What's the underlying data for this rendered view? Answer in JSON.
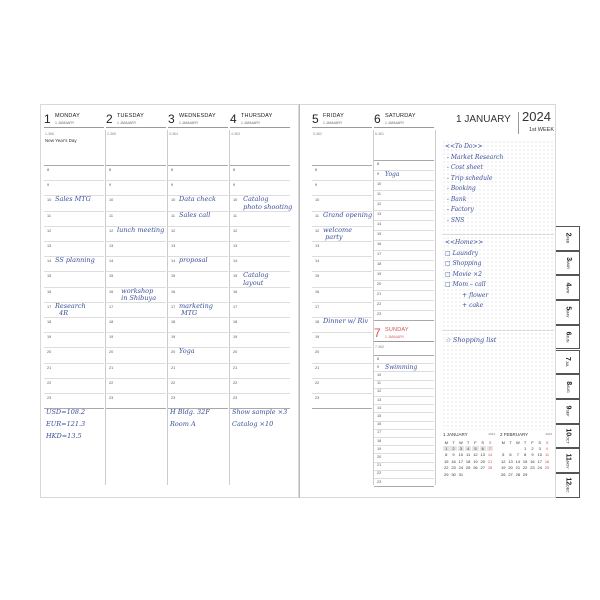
{
  "days": [
    {
      "num": "1",
      "name": "MONDAY",
      "month": "1 JANUARY",
      "count": "1-366",
      "holiday": "New Year's Day"
    },
    {
      "num": "2",
      "name": "TUESDAY",
      "month": "1 JANUARY",
      "count": "2-365",
      "holiday": ""
    },
    {
      "num": "3",
      "name": "WEDNESDAY",
      "month": "1 JANUARY",
      "count": "3-364",
      "holiday": ""
    },
    {
      "num": "4",
      "name": "THURSDAY",
      "month": "1 JANUARY",
      "count": "4-363",
      "holiday": ""
    },
    {
      "num": "5",
      "name": "FRIDAY",
      "month": "1 JANUARY",
      "count": "5-362",
      "holiday": ""
    },
    {
      "num": "6",
      "name": "SATURDAY",
      "month": "1 JANUARY",
      "count": "6-361",
      "holiday": ""
    },
    {
      "num": "7",
      "name": "SUNDAY",
      "month": "1 JANUARY",
      "count": "7-360",
      "holiday": ""
    }
  ],
  "hours": [
    "8",
    "9",
    "10",
    "11",
    "12",
    "13",
    "14",
    "15",
    "16",
    "17",
    "18",
    "19",
    "20",
    "21",
    "22",
    "23"
  ],
  "entries": [
    {
      "day": 0,
      "hour": 10,
      "text": "Sales MTG"
    },
    {
      "day": 0,
      "hour": 14,
      "text": "SS planning"
    },
    {
      "day": 0,
      "hour": 17,
      "text": "Research\n  4R"
    },
    {
      "day": 1,
      "hour": 12,
      "text": "lunch meeting"
    },
    {
      "day": 1,
      "hour": 16,
      "text": "  workshop\n  in Shibuya"
    },
    {
      "day": 2,
      "hour": 10,
      "text": "Data check"
    },
    {
      "day": 2,
      "hour": 11,
      "text": "Sales call"
    },
    {
      "day": 2,
      "hour": 14,
      "text": "proposal"
    },
    {
      "day": 2,
      "hour": 17,
      "text": "marketing\n MTG"
    },
    {
      "day": 2,
      "hour": 20,
      "text": "Yoga"
    },
    {
      "day": 3,
      "hour": 10,
      "text": " Catalog\n photo shooting"
    },
    {
      "day": 3,
      "hour": 15,
      "text": " Catalog\n layout"
    },
    {
      "day": 4,
      "hour": 11,
      "text": "Grand opening"
    },
    {
      "day": 4,
      "hour": 12,
      "text": "welcome\n party"
    },
    {
      "day": 4,
      "hour": 18,
      "text": "Dinner w/ Riv"
    },
    {
      "day": 5,
      "hour": 9,
      "text": "Yoga"
    },
    {
      "day": 6,
      "hour": 9,
      "text": "Swimming"
    }
  ],
  "memos": [
    {
      "day": 0,
      "text": "USD=108.2\nEUR=121.3\nHKD=13.5"
    },
    {
      "day": 2,
      "text": "H Bldg. 32F\nRoom A"
    },
    {
      "day": 3,
      "text": "Show sample ×3\nCatalog ×10"
    }
  ],
  "week_header": {
    "date": "1 JANUARY",
    "year": "2024",
    "week": "1st WEEK"
  },
  "notes": {
    "todo": "<<To Do>>\n - Market Research\n - Cost sheet\n - Trip schedule\n - Booking\n - Bank\n - Factory\n - SNS",
    "home": "<<Home>>\n□ Laundry\n□ Shopping\n□ Movie ×2\n□ Mom – call\n         + flower\n         + cake",
    "shopping": "☆ Shopping list"
  },
  "mini_calendars": [
    {
      "title": "1 JANUARY",
      "year": "2024",
      "weekdays": [
        "M",
        "T",
        "W",
        "T",
        "F",
        "S",
        "S"
      ],
      "first_weekday": 0,
      "days": 31
    },
    {
      "title": "2 FEBRUARY",
      "year": "2024",
      "weekdays": [
        "M",
        "T",
        "W",
        "T",
        "F",
        "S",
        "S"
      ],
      "first_weekday": 3,
      "days": 29
    }
  ],
  "tabs": [
    {
      "num": "2",
      "mon": "FEB"
    },
    {
      "num": "3",
      "mon": "MAR"
    },
    {
      "num": "4",
      "mon": "APR"
    },
    {
      "num": "5",
      "mon": "MAY"
    },
    {
      "num": "6",
      "mon": "JUN"
    },
    {
      "num": "7",
      "mon": "JUL"
    },
    {
      "num": "8",
      "mon": "AUG"
    },
    {
      "num": "9",
      "mon": "SEP"
    },
    {
      "num": "10",
      "mon": "OCT"
    },
    {
      "num": "11",
      "mon": "NOV"
    },
    {
      "num": "12",
      "mon": "DEC"
    }
  ],
  "colors": {
    "ink": "#3a4f9a",
    "sunday": "#d9534f"
  }
}
